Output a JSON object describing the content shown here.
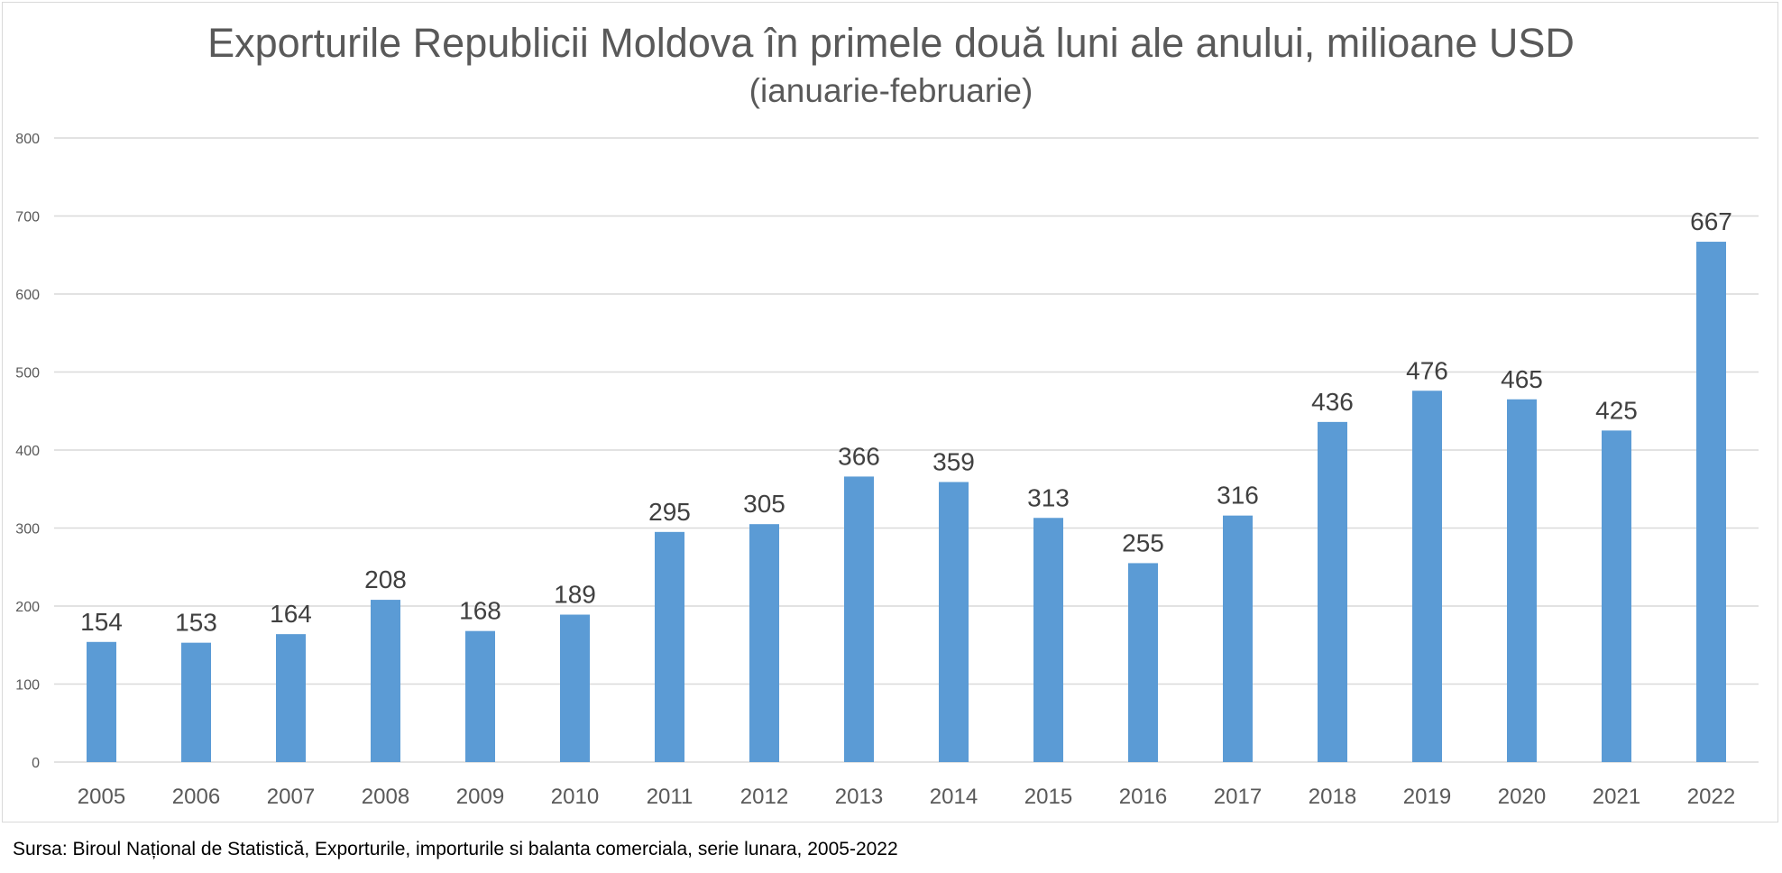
{
  "chart_data": {
    "type": "bar",
    "title": "Exporturile Republicii Moldova în primele două luni ale anului, milioane USD",
    "subtitle": "(ianuarie-februarie)",
    "xlabel": "",
    "ylabel": "",
    "ylim": [
      0,
      800
    ],
    "yticks": [
      "0",
      "100",
      "200",
      "300",
      "400",
      "500",
      "600",
      "700",
      "800"
    ],
    "ytick_values": [
      0,
      100,
      200,
      300,
      400,
      500,
      600,
      700,
      800
    ],
    "grid": true,
    "legend": "none",
    "categories": [
      "2005",
      "2006",
      "2007",
      "2008",
      "2009",
      "2010",
      "2011",
      "2012",
      "2013",
      "2014",
      "2015",
      "2016",
      "2017",
      "2018",
      "2019",
      "2020",
      "2021",
      "2022"
    ],
    "values": [
      154,
      153,
      164,
      208,
      168,
      189,
      295,
      305,
      366,
      359,
      313,
      255,
      316,
      436,
      476,
      465,
      425,
      667
    ],
    "labels": [
      "154",
      "153",
      "164",
      "208",
      "168",
      "189",
      "295",
      "305",
      "366",
      "359",
      "313",
      "255",
      "316",
      "436",
      "476",
      "465",
      "425",
      "667"
    ],
    "bar_color": "#5b9bd5",
    "grid_color": "#d9d9d9",
    "label_color": "#404040",
    "tick_color": "#595959"
  },
  "footer": {
    "source": "Sursa: Biroul Național de Statistică, Exporturile, importurile si balanta comerciala, serie lunara, 2005-2022"
  }
}
